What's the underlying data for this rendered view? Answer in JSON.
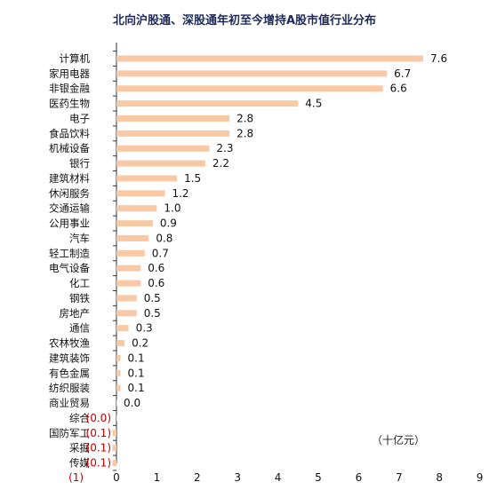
{
  "chart_data": {
    "type": "bar",
    "orientation": "horizontal",
    "title": "北向沪股通、深股通年初至今增持A股市值行业分布",
    "unit": "（十亿元）",
    "xlim": [
      -1,
      9
    ],
    "xticks": [
      "(1)",
      "0",
      "1",
      "2",
      "3",
      "4",
      "5",
      "6",
      "7",
      "8",
      "9"
    ],
    "categories": [
      "计算机",
      "家用电器",
      "非银金融",
      "医药生物",
      "电子",
      "食品饮料",
      "机械设备",
      "银行",
      "建筑材料",
      "休闲服务",
      "交通运输",
      "公用事业",
      "汽车",
      "轻工制造",
      "电气设备",
      "化工",
      "钢铁",
      "房地产",
      "通信",
      "农林牧渔",
      "建筑装饰",
      "有色金属",
      "纺织服装",
      "商业贸易",
      "综合",
      "国防军工",
      "采掘",
      "传媒"
    ],
    "values": [
      7.6,
      6.7,
      6.6,
      4.5,
      2.8,
      2.8,
      2.3,
      2.2,
      1.5,
      1.2,
      1.0,
      0.9,
      0.8,
      0.7,
      0.6,
      0.6,
      0.5,
      0.5,
      0.3,
      0.2,
      0.1,
      0.1,
      0.1,
      0.0,
      -0.0,
      -0.1,
      -0.1,
      -0.1
    ],
    "value_labels": [
      "7.6",
      "6.7",
      "6.6",
      "4.5",
      "2.8",
      "2.8",
      "2.3",
      "2.2",
      "1.5",
      "1.2",
      "1.0",
      "0.9",
      "0.8",
      "0.7",
      "0.6",
      "0.6",
      "0.5",
      "0.5",
      "0.3",
      "0.2",
      "0.1",
      "0.1",
      "0.1",
      "0.0",
      "(0.0)",
      "(0.1)",
      "(0.1)",
      "(0.1)"
    ],
    "bar_color": "#f9c9a6",
    "negative_label_color": "#c00000",
    "positive_label_color": "#111111",
    "grid": false
  }
}
